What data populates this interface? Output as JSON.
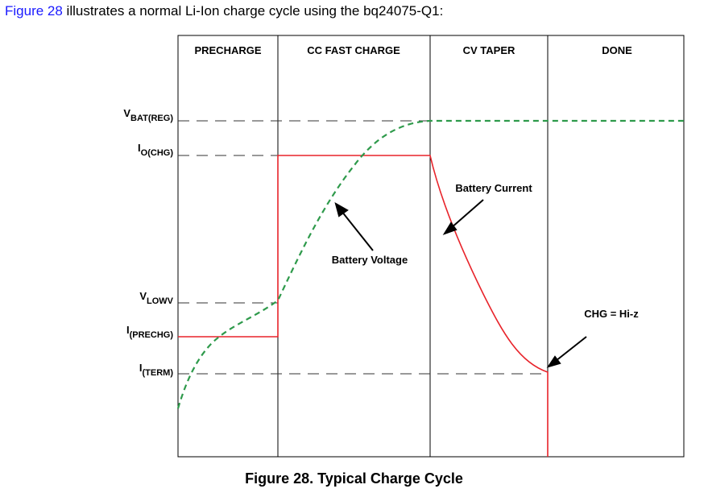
{
  "intro": {
    "link_text": "Figure 28",
    "rest_text": " illustrates a normal Li-Ion charge cycle using the bq24075-Q1:"
  },
  "figure": {
    "phases": [
      "PRECHARGE",
      "CC FAST CHARGE",
      "CV TAPER",
      "DONE"
    ],
    "levels": [
      {
        "main": "V",
        "sub": "BAT(REG)"
      },
      {
        "main": "I",
        "sub": "O(CHG)"
      },
      {
        "main": "V",
        "sub": "LOWV"
      },
      {
        "main": "I",
        "sub": "(PRECHG)"
      },
      {
        "main": "I",
        "sub": "(TERM)"
      }
    ],
    "annotations": {
      "battery_current": "Battery Current",
      "battery_voltage": "Battery Voltage",
      "chg_status": "CHG = Hi-z"
    },
    "caption": "Figure 28.  Typical Charge Cycle",
    "colors": {
      "current": "#e8232a",
      "voltage": "#2e9a4b",
      "dashed_reference": "#333333",
      "link": "#1a1aff"
    }
  }
}
